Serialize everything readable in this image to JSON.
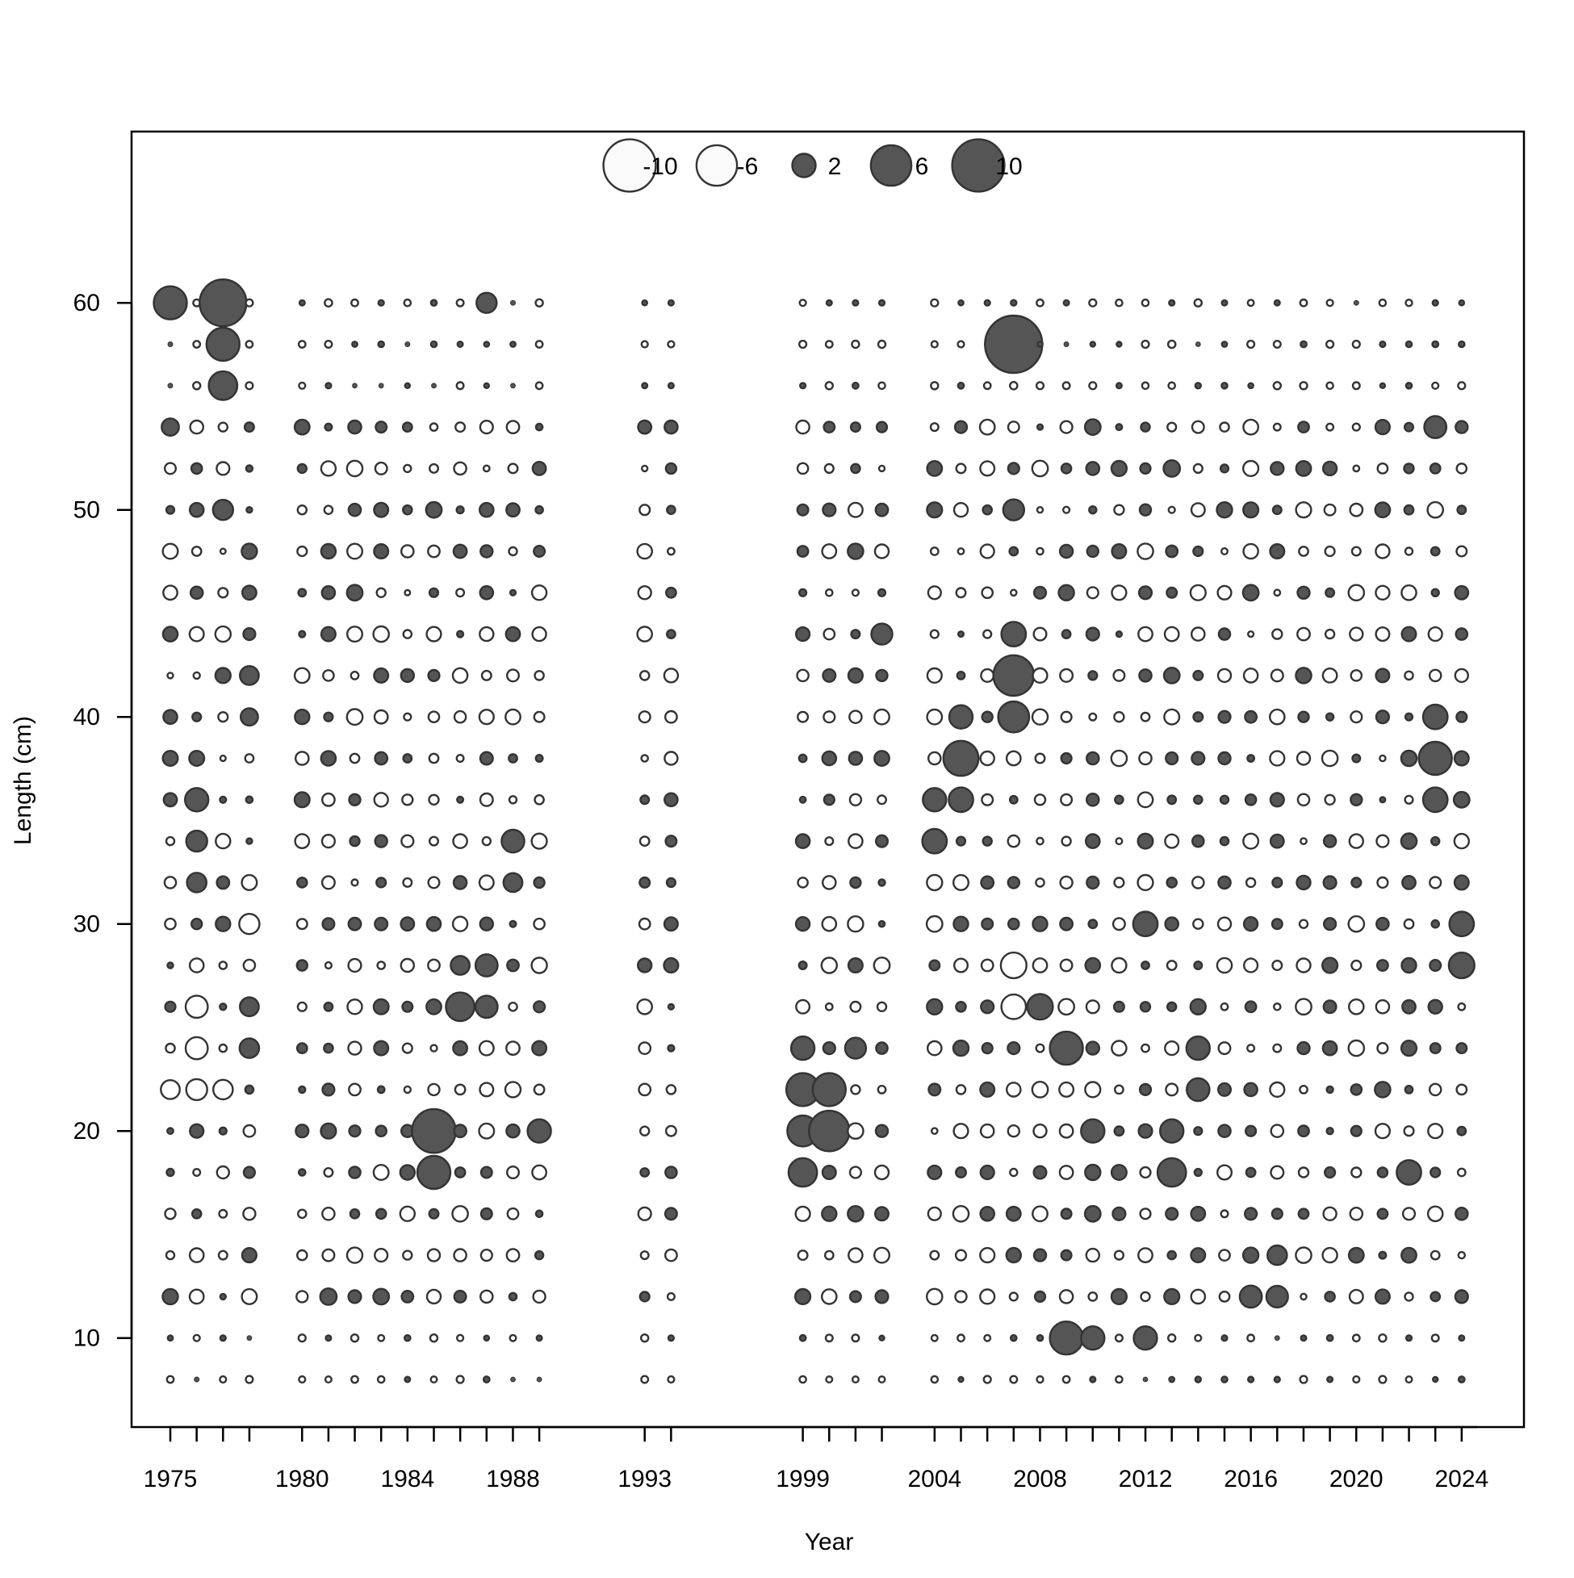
{
  "chart_data": {
    "type": "scatter",
    "subtype": "bubble",
    "title": "",
    "xlabel": "Year",
    "ylabel": "Length (cm)",
    "xlim": [
      1972.5,
      2025.5
    ],
    "ylim": [
      6.0,
      68.0
    ],
    "x_ticks": [
      1975,
      1976,
      1977,
      1978,
      1980,
      1981,
      1982,
      1983,
      1984,
      1985,
      1986,
      1987,
      1988,
      1989,
      1993,
      1994,
      1999,
      2000,
      2001,
      2002,
      2004,
      2005,
      2006,
      2007,
      2008,
      2009,
      2010,
      2011,
      2012,
      2013,
      2014,
      2015,
      2016,
      2017,
      2018,
      2019,
      2020,
      2021,
      2022,
      2023,
      2024
    ],
    "x_tick_labels": [
      "1975",
      "1980",
      "1984",
      "1988",
      "1993",
      "1999",
      "2004",
      "2008",
      "2012",
      "2016",
      "2020",
      "2024"
    ],
    "y_ticks": [
      10,
      20,
      30,
      40,
      50,
      60
    ],
    "y_tick_labels": [
      "10",
      "20",
      "30",
      "40",
      "50",
      "60"
    ],
    "grid": false,
    "legend": {
      "placement": "top-center",
      "entries": [
        {
          "value": -10,
          "label": "-10"
        },
        {
          "value": -6,
          "label": "-6"
        },
        {
          "value": 2,
          "label": "2"
        },
        {
          "value": 6,
          "label": "6"
        },
        {
          "value": 10,
          "label": "10"
        }
      ]
    },
    "colors": {
      "positive_fill": "#555555",
      "negative_fill": "#ffffff",
      "stroke": "#333333",
      "axis": "#000000"
    },
    "size_encoding": "bubble area proportional to |residual|; filled = positive, open = negative",
    "lengths": [
      8,
      10,
      12,
      14,
      16,
      18,
      20,
      22,
      24,
      26,
      28,
      30,
      32,
      34,
      36,
      38,
      40,
      42,
      44,
      46,
      48,
      50,
      52,
      54,
      56,
      58,
      60
    ],
    "years": [
      1975,
      1976,
      1977,
      1978,
      1980,
      1981,
      1982,
      1983,
      1984,
      1985,
      1986,
      1987,
      1988,
      1989,
      1993,
      1994,
      1999,
      2000,
      2001,
      2002,
      2004,
      2005,
      2006,
      2007,
      2008,
      2009,
      2010,
      2011,
      2012,
      2013,
      2014,
      2015,
      2016,
      2017,
      2018,
      2019,
      2020,
      2021,
      2022,
      2023,
      2024
    ],
    "notable_residuals": [
      {
        "year": 1975,
        "length": 60,
        "value": 4
      },
      {
        "year": 1977,
        "length": 60,
        "value": 8
      },
      {
        "year": 1977,
        "length": 58,
        "value": 4
      },
      {
        "year": 1977,
        "length": 56,
        "value": 3
      },
      {
        "year": 1975,
        "length": 54,
        "value": 1.1
      },
      {
        "year": 1977,
        "length": 50,
        "value": 1.5
      },
      {
        "year": 1987,
        "length": 60,
        "value": 1.5
      },
      {
        "year": 2007,
        "length": 58,
        "value": 12
      },
      {
        "year": 2023,
        "length": 54,
        "value": 1.8
      },
      {
        "year": 2013,
        "length": 52,
        "value": 1
      },
      {
        "year": 2007,
        "length": 50,
        "value": 1.6
      },
      {
        "year": 1978,
        "length": 42,
        "value": 1.3
      },
      {
        "year": 1978,
        "length": 40,
        "value": 1.1
      },
      {
        "year": 1976,
        "length": 36,
        "value": 2
      },
      {
        "year": 1976,
        "length": 34,
        "value": 1.6
      },
      {
        "year": 1976,
        "length": 32,
        "value": 1.4
      },
      {
        "year": 1978,
        "length": 26,
        "value": 1.3
      },
      {
        "year": 1978,
        "length": 24,
        "value": 1.4
      },
      {
        "year": 1976,
        "length": 26,
        "value": -1.8
      },
      {
        "year": 1976,
        "length": 24,
        "value": -1.8
      },
      {
        "year": 1978,
        "length": 30,
        "value": -1.5
      },
      {
        "year": 1975,
        "length": 22,
        "value": -1.3
      },
      {
        "year": 1976,
        "length": 22,
        "value": -1.6
      },
      {
        "year": 1977,
        "length": 22,
        "value": -1.4
      },
      {
        "year": 1981,
        "length": 12,
        "value": 1
      },
      {
        "year": 1985,
        "length": 20,
        "value": 7
      },
      {
        "year": 1985,
        "length": 18,
        "value": 4
      },
      {
        "year": 1986,
        "length": 26,
        "value": 3
      },
      {
        "year": 1987,
        "length": 26,
        "value": 1.8
      },
      {
        "year": 1987,
        "length": 28,
        "value": 1.8
      },
      {
        "year": 1986,
        "length": 28,
        "value": 1.3
      },
      {
        "year": 1988,
        "length": 34,
        "value": 1.9
      },
      {
        "year": 1988,
        "length": 32,
        "value": 1.3
      },
      {
        "year": 1989,
        "length": 20,
        "value": 2
      },
      {
        "year": 1999,
        "length": 22,
        "value": 4
      },
      {
        "year": 1999,
        "length": 20,
        "value": 3.5
      },
      {
        "year": 1999,
        "length": 18,
        "value": 3
      },
      {
        "year": 1999,
        "length": 24,
        "value": 2
      },
      {
        "year": 2000,
        "length": 22,
        "value": 4
      },
      {
        "year": 2000,
        "length": 20,
        "value": 6
      },
      {
        "year": 2001,
        "length": 24,
        "value": 1.6
      },
      {
        "year": 2002,
        "length": 44,
        "value": 1.6
      },
      {
        "year": 2005,
        "length": 38,
        "value": 4.5
      },
      {
        "year": 2005,
        "length": 36,
        "value": 2.2
      },
      {
        "year": 2005,
        "length": 40,
        "value": 2
      },
      {
        "year": 2004,
        "length": 36,
        "value": 2
      },
      {
        "year": 2004,
        "length": 34,
        "value": 2.2
      },
      {
        "year": 2007,
        "length": 44,
        "value": 2.2
      },
      {
        "year": 2007,
        "length": 42,
        "value": 6
      },
      {
        "year": 2007,
        "length": 40,
        "value": 3.5
      },
      {
        "year": 2007,
        "length": 28,
        "value": -2.4
      },
      {
        "year": 2007,
        "length": 26,
        "value": -2.2
      },
      {
        "year": 2008,
        "length": 26,
        "value": 2.4
      },
      {
        "year": 2009,
        "length": 24,
        "value": 4
      },
      {
        "year": 2009,
        "length": 10,
        "value": 4
      },
      {
        "year": 2010,
        "length": 10,
        "value": 2
      },
      {
        "year": 2012,
        "length": 10,
        "value": 2
      },
      {
        "year": 2010,
        "length": 20,
        "value": 2
      },
      {
        "year": 2012,
        "length": 30,
        "value": 2.2
      },
      {
        "year": 2013,
        "length": 18,
        "value": 3
      },
      {
        "year": 2013,
        "length": 20,
        "value": 2
      },
      {
        "year": 2014,
        "length": 22,
        "value": 1.9
      },
      {
        "year": 2014,
        "length": 24,
        "value": 2
      },
      {
        "year": 2016,
        "length": 12,
        "value": 1.8
      },
      {
        "year": 2017,
        "length": 12,
        "value": 1.7
      },
      {
        "year": 2017,
        "length": 14,
        "value": 1.4
      },
      {
        "year": 2022,
        "length": 18,
        "value": 2.2
      },
      {
        "year": 2023,
        "length": 40,
        "value": 2.2
      },
      {
        "year": 2023,
        "length": 38,
        "value": 4
      },
      {
        "year": 2023,
        "length": 36,
        "value": 2.2
      },
      {
        "year": 2024,
        "length": 30,
        "value": 2.2
      },
      {
        "year": 2024,
        "length": 28,
        "value": 2.4
      }
    ]
  }
}
